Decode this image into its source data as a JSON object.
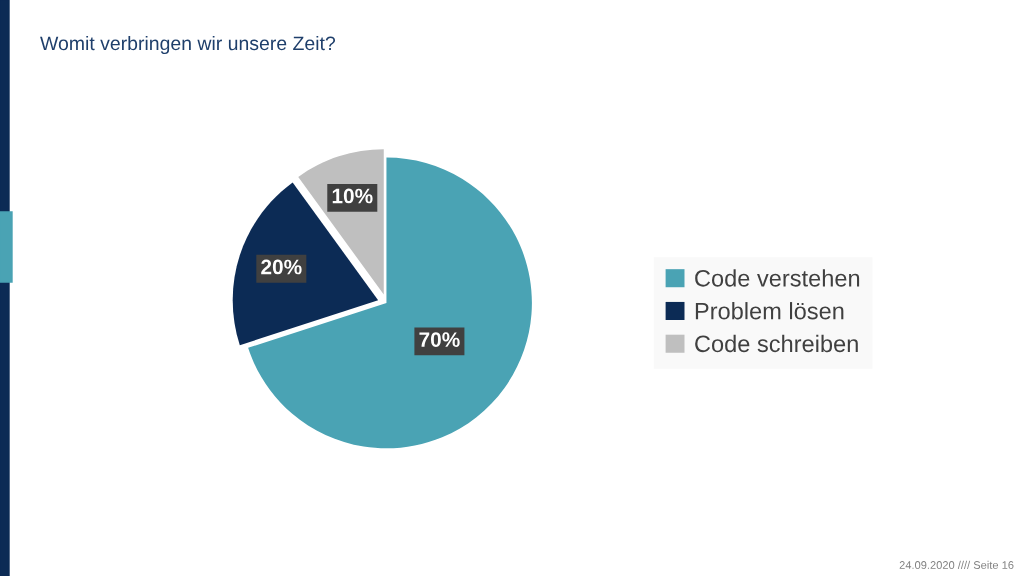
{
  "chart_data": {
    "type": "pie",
    "title": "Womit verbringen wir unsere Zeit?",
    "categories": [
      "Code verstehen",
      "Problem lösen",
      "Code schreiben"
    ],
    "values": [
      70,
      20,
      10
    ],
    "colors": [
      "#4aa3b4",
      "#0c2b55",
      "#bfbfbf"
    ],
    "value_labels": [
      "70%",
      "20%",
      "10%"
    ],
    "legend": "right",
    "annotations": [
      "24.09.2020 //// Seite 16"
    ]
  }
}
